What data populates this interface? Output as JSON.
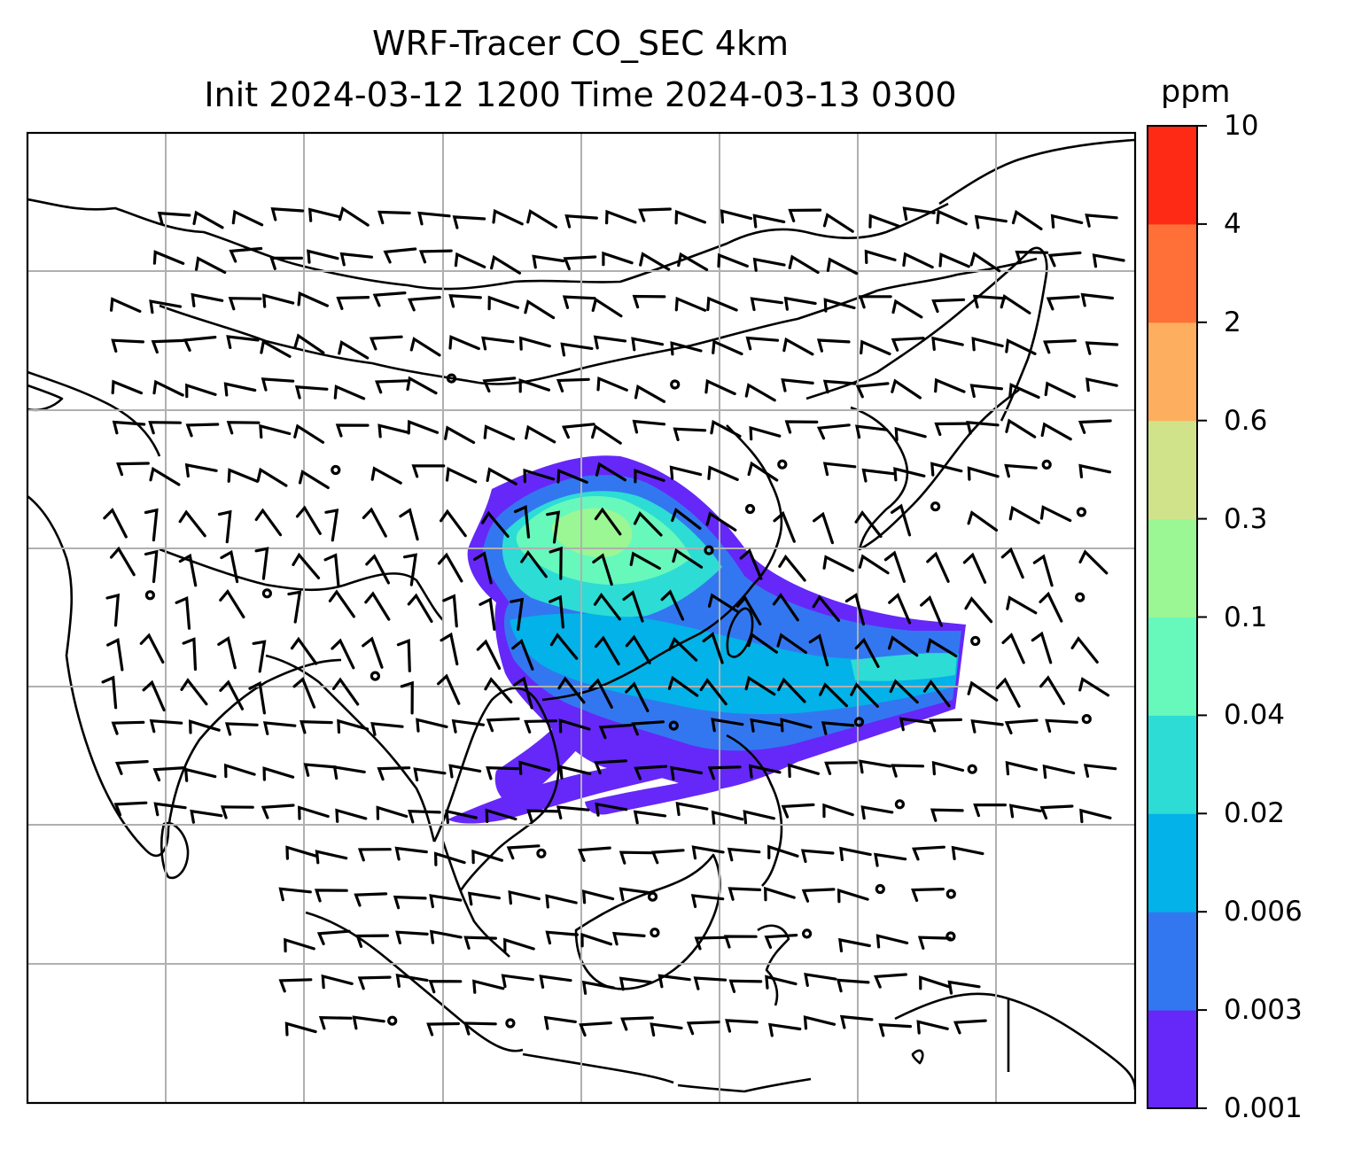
{
  "title": {
    "line1": "WRF-Tracer CO_SEC 4km",
    "line2": "Init 2024-03-12 1200 Time 2024-03-13 0300"
  },
  "colorbar": {
    "unit": "ppm",
    "levels": [
      "0.001",
      "0.003",
      "0.006",
      "0.02",
      "0.04",
      "0.1",
      "0.3",
      "0.6",
      "2",
      "4",
      "10"
    ],
    "colors": [
      "#6528f8",
      "#3377f0",
      "#03b2e8",
      "#2ddcd5",
      "#67f8bc",
      "#9bf694",
      "#d0e38a",
      "#feae5f",
      "#ff7038",
      "#fe2a16"
    ]
  },
  "map": {
    "plume_colors": {
      "outer": "#6528f8",
      "mid": "#3377f0",
      "core": "#03b2e8",
      "teal": "#2ddcd5",
      "green": "#67f8bc",
      "light": "#9bf694"
    },
    "coastline_color": "#000000",
    "grid_color": "#b0b0b0"
  }
}
